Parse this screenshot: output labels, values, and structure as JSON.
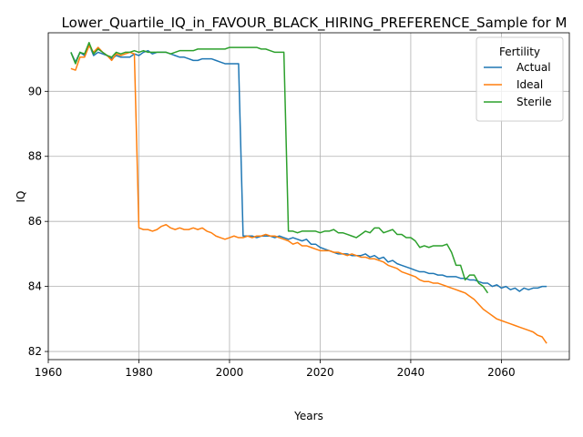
{
  "chart_data": {
    "type": "line",
    "title": "Lower_Quartile_IQ_in_FAVOUR_BLACK_HIRING_PREFERENCE_Sample for M",
    "xlabel": "Years",
    "ylabel": "IQ",
    "xlim": [
      1960,
      2075
    ],
    "ylim": [
      81.75,
      91.8
    ],
    "xticks": [
      1960,
      1980,
      2000,
      2020,
      2040,
      2060
    ],
    "yticks": [
      82,
      84,
      86,
      88,
      90
    ],
    "grid": true,
    "legend": {
      "title": "Fertility",
      "placement": "top-right"
    },
    "series": [
      {
        "name": "Actual",
        "color": "#1f77b4",
        "points": [
          [
            1965,
            91.2
          ],
          [
            1966,
            90.9
          ],
          [
            1967,
            91.2
          ],
          [
            1968,
            91.1
          ],
          [
            1969,
            91.45
          ],
          [
            1970,
            91.1
          ],
          [
            1971,
            91.2
          ],
          [
            1972,
            91.15
          ],
          [
            1973,
            91.1
          ],
          [
            1974,
            91.0
          ],
          [
            1975,
            91.1
          ],
          [
            1976,
            91.05
          ],
          [
            1977,
            91.05
          ],
          [
            1978,
            91.05
          ],
          [
            1979,
            91.15
          ],
          [
            1980,
            91.1
          ],
          [
            1981,
            91.2
          ],
          [
            1982,
            91.25
          ],
          [
            1983,
            91.15
          ],
          [
            1984,
            91.2
          ],
          [
            1985,
            91.2
          ],
          [
            1986,
            91.2
          ],
          [
            1987,
            91.15
          ],
          [
            1988,
            91.1
          ],
          [
            1989,
            91.05
          ],
          [
            1990,
            91.05
          ],
          [
            1991,
            91.0
          ],
          [
            1992,
            90.95
          ],
          [
            1993,
            90.95
          ],
          [
            1994,
            91.0
          ],
          [
            1995,
            91.0
          ],
          [
            1996,
            91.0
          ],
          [
            1997,
            90.95
          ],
          [
            1998,
            90.9
          ],
          [
            1999,
            90.85
          ],
          [
            2000,
            90.85
          ],
          [
            2001,
            90.85
          ],
          [
            2002,
            90.85
          ],
          [
            2003,
            85.55
          ],
          [
            2004,
            85.55
          ],
          [
            2005,
            85.55
          ],
          [
            2006,
            85.5
          ],
          [
            2007,
            85.55
          ],
          [
            2008,
            85.55
          ],
          [
            2009,
            85.55
          ],
          [
            2010,
            85.5
          ],
          [
            2011,
            85.55
          ],
          [
            2012,
            85.5
          ],
          [
            2013,
            85.45
          ],
          [
            2014,
            85.5
          ],
          [
            2015,
            85.45
          ],
          [
            2016,
            85.4
          ],
          [
            2017,
            85.45
          ],
          [
            2018,
            85.3
          ],
          [
            2019,
            85.3
          ],
          [
            2020,
            85.2
          ],
          [
            2021,
            85.15
          ],
          [
            2022,
            85.1
          ],
          [
            2023,
            85.05
          ],
          [
            2024,
            85.0
          ],
          [
            2025,
            85.0
          ],
          [
            2026,
            85.0
          ],
          [
            2027,
            84.95
          ],
          [
            2028,
            84.95
          ],
          [
            2029,
            84.95
          ],
          [
            2030,
            85.0
          ],
          [
            2031,
            84.9
          ],
          [
            2032,
            84.95
          ],
          [
            2033,
            84.85
          ],
          [
            2034,
            84.9
          ],
          [
            2035,
            84.75
          ],
          [
            2036,
            84.8
          ],
          [
            2037,
            84.7
          ],
          [
            2038,
            84.65
          ],
          [
            2039,
            84.6
          ],
          [
            2040,
            84.55
          ],
          [
            2041,
            84.5
          ],
          [
            2042,
            84.45
          ],
          [
            2043,
            84.45
          ],
          [
            2044,
            84.4
          ],
          [
            2045,
            84.4
          ],
          [
            2046,
            84.35
          ],
          [
            2047,
            84.35
          ],
          [
            2048,
            84.3
          ],
          [
            2049,
            84.3
          ],
          [
            2050,
            84.3
          ],
          [
            2051,
            84.25
          ],
          [
            2052,
            84.25
          ],
          [
            2053,
            84.2
          ],
          [
            2054,
            84.2
          ],
          [
            2055,
            84.15
          ],
          [
            2056,
            84.1
          ],
          [
            2057,
            84.1
          ],
          [
            2058,
            84.0
          ],
          [
            2059,
            84.05
          ],
          [
            2060,
            83.95
          ],
          [
            2061,
            84.0
          ],
          [
            2062,
            83.9
          ],
          [
            2063,
            83.95
          ],
          [
            2064,
            83.85
          ],
          [
            2065,
            83.95
          ],
          [
            2066,
            83.9
          ],
          [
            2067,
            83.95
          ],
          [
            2068,
            83.95
          ],
          [
            2069,
            84.0
          ],
          [
            2070,
            84.0
          ]
        ]
      },
      {
        "name": "Ideal",
        "color": "#ff7f0e",
        "points": [
          [
            1965,
            90.7
          ],
          [
            1966,
            90.65
          ],
          [
            1967,
            91.05
          ],
          [
            1968,
            91.05
          ],
          [
            1969,
            91.4
          ],
          [
            1970,
            91.2
          ],
          [
            1971,
            91.35
          ],
          [
            1972,
            91.2
          ],
          [
            1973,
            91.1
          ],
          [
            1974,
            90.95
          ],
          [
            1975,
            91.15
          ],
          [
            1976,
            91.1
          ],
          [
            1977,
            91.15
          ],
          [
            1978,
            91.2
          ],
          [
            1979,
            91.15
          ],
          [
            1980,
            85.8
          ],
          [
            1981,
            85.75
          ],
          [
            1982,
            85.75
          ],
          [
            1983,
            85.7
          ],
          [
            1984,
            85.75
          ],
          [
            1985,
            85.85
          ],
          [
            1986,
            85.9
          ],
          [
            1987,
            85.8
          ],
          [
            1988,
            85.75
          ],
          [
            1989,
            85.8
          ],
          [
            1990,
            85.75
          ],
          [
            1991,
            85.75
          ],
          [
            1992,
            85.8
          ],
          [
            1993,
            85.75
          ],
          [
            1994,
            85.8
          ],
          [
            1995,
            85.7
          ],
          [
            1996,
            85.65
          ],
          [
            1997,
            85.55
          ],
          [
            1998,
            85.5
          ],
          [
            1999,
            85.45
          ],
          [
            2000,
            85.5
          ],
          [
            2001,
            85.55
          ],
          [
            2002,
            85.5
          ],
          [
            2003,
            85.5
          ],
          [
            2004,
            85.55
          ],
          [
            2005,
            85.5
          ],
          [
            2006,
            85.55
          ],
          [
            2007,
            85.55
          ],
          [
            2008,
            85.6
          ],
          [
            2009,
            85.55
          ],
          [
            2010,
            85.55
          ],
          [
            2011,
            85.5
          ],
          [
            2012,
            85.45
          ],
          [
            2013,
            85.4
          ],
          [
            2014,
            85.3
          ],
          [
            2015,
            85.35
          ],
          [
            2016,
            85.25
          ],
          [
            2017,
            85.25
          ],
          [
            2018,
            85.2
          ],
          [
            2019,
            85.15
          ],
          [
            2020,
            85.1
          ],
          [
            2021,
            85.1
          ],
          [
            2022,
            85.1
          ],
          [
            2023,
            85.05
          ],
          [
            2024,
            85.05
          ],
          [
            2025,
            85.0
          ],
          [
            2026,
            84.95
          ],
          [
            2027,
            85.0
          ],
          [
            2028,
            84.95
          ],
          [
            2029,
            84.9
          ],
          [
            2030,
            84.9
          ],
          [
            2031,
            84.85
          ],
          [
            2032,
            84.85
          ],
          [
            2033,
            84.8
          ],
          [
            2034,
            84.75
          ],
          [
            2035,
            84.65
          ],
          [
            2036,
            84.6
          ],
          [
            2037,
            84.55
          ],
          [
            2038,
            84.45
          ],
          [
            2039,
            84.4
          ],
          [
            2040,
            84.35
          ],
          [
            2041,
            84.3
          ],
          [
            2042,
            84.2
          ],
          [
            2043,
            84.15
          ],
          [
            2044,
            84.15
          ],
          [
            2045,
            84.1
          ],
          [
            2046,
            84.1
          ],
          [
            2047,
            84.05
          ],
          [
            2048,
            84.0
          ],
          [
            2049,
            83.95
          ],
          [
            2050,
            83.9
          ],
          [
            2051,
            83.85
          ],
          [
            2052,
            83.8
          ],
          [
            2053,
            83.7
          ],
          [
            2054,
            83.6
          ],
          [
            2055,
            83.45
          ],
          [
            2056,
            83.3
          ],
          [
            2057,
            83.2
          ],
          [
            2058,
            83.1
          ],
          [
            2059,
            83.0
          ],
          [
            2060,
            82.95
          ],
          [
            2061,
            82.9
          ],
          [
            2062,
            82.85
          ],
          [
            2063,
            82.8
          ],
          [
            2064,
            82.75
          ],
          [
            2065,
            82.7
          ],
          [
            2066,
            82.65
          ],
          [
            2067,
            82.6
          ],
          [
            2068,
            82.5
          ],
          [
            2069,
            82.45
          ],
          [
            2070,
            82.25
          ]
        ]
      },
      {
        "name": "Sterile",
        "color": "#2ca02c",
        "points": [
          [
            1965,
            91.2
          ],
          [
            1966,
            90.85
          ],
          [
            1967,
            91.2
          ],
          [
            1968,
            91.15
          ],
          [
            1969,
            91.5
          ],
          [
            1970,
            91.15
          ],
          [
            1971,
            91.3
          ],
          [
            1972,
            91.2
          ],
          [
            1973,
            91.1
          ],
          [
            1974,
            91.05
          ],
          [
            1975,
            91.2
          ],
          [
            1976,
            91.15
          ],
          [
            1977,
            91.2
          ],
          [
            1978,
            91.2
          ],
          [
            1979,
            91.25
          ],
          [
            1980,
            91.2
          ],
          [
            1981,
            91.25
          ],
          [
            1982,
            91.2
          ],
          [
            1983,
            91.2
          ],
          [
            1984,
            91.2
          ],
          [
            1985,
            91.2
          ],
          [
            1986,
            91.2
          ],
          [
            1987,
            91.15
          ],
          [
            1988,
            91.2
          ],
          [
            1989,
            91.25
          ],
          [
            1990,
            91.25
          ],
          [
            1991,
            91.25
          ],
          [
            1992,
            91.25
          ],
          [
            1993,
            91.3
          ],
          [
            1994,
            91.3
          ],
          [
            1995,
            91.3
          ],
          [
            1996,
            91.3
          ],
          [
            1997,
            91.3
          ],
          [
            1998,
            91.3
          ],
          [
            1999,
            91.3
          ],
          [
            2000,
            91.35
          ],
          [
            2001,
            91.35
          ],
          [
            2002,
            91.35
          ],
          [
            2003,
            91.35
          ],
          [
            2004,
            91.35
          ],
          [
            2005,
            91.35
          ],
          [
            2006,
            91.35
          ],
          [
            2007,
            91.3
          ],
          [
            2008,
            91.3
          ],
          [
            2009,
            91.25
          ],
          [
            2010,
            91.2
          ],
          [
            2011,
            91.2
          ],
          [
            2012,
            91.2
          ],
          [
            2013,
            85.7
          ],
          [
            2014,
            85.7
          ],
          [
            2015,
            85.65
          ],
          [
            2016,
            85.7
          ],
          [
            2017,
            85.7
          ],
          [
            2018,
            85.7
          ],
          [
            2019,
            85.7
          ],
          [
            2020,
            85.65
          ],
          [
            2021,
            85.7
          ],
          [
            2022,
            85.7
          ],
          [
            2023,
            85.75
          ],
          [
            2024,
            85.65
          ],
          [
            2025,
            85.65
          ],
          [
            2026,
            85.6
          ],
          [
            2027,
            85.55
          ],
          [
            2028,
            85.5
          ],
          [
            2029,
            85.6
          ],
          [
            2030,
            85.7
          ],
          [
            2031,
            85.65
          ],
          [
            2032,
            85.8
          ],
          [
            2033,
            85.8
          ],
          [
            2034,
            85.65
          ],
          [
            2035,
            85.7
          ],
          [
            2036,
            85.75
          ],
          [
            2037,
            85.6
          ],
          [
            2038,
            85.6
          ],
          [
            2039,
            85.5
          ],
          [
            2040,
            85.5
          ],
          [
            2041,
            85.4
          ],
          [
            2042,
            85.2
          ],
          [
            2043,
            85.25
          ],
          [
            2044,
            85.2
          ],
          [
            2045,
            85.25
          ],
          [
            2046,
            85.25
          ],
          [
            2047,
            85.25
          ],
          [
            2048,
            85.3
          ],
          [
            2049,
            85.05
          ],
          [
            2050,
            84.65
          ],
          [
            2051,
            84.65
          ],
          [
            2052,
            84.2
          ],
          [
            2053,
            84.35
          ],
          [
            2054,
            84.35
          ],
          [
            2055,
            84.1
          ],
          [
            2056,
            84.0
          ],
          [
            2057,
            83.8
          ]
        ]
      }
    ]
  }
}
